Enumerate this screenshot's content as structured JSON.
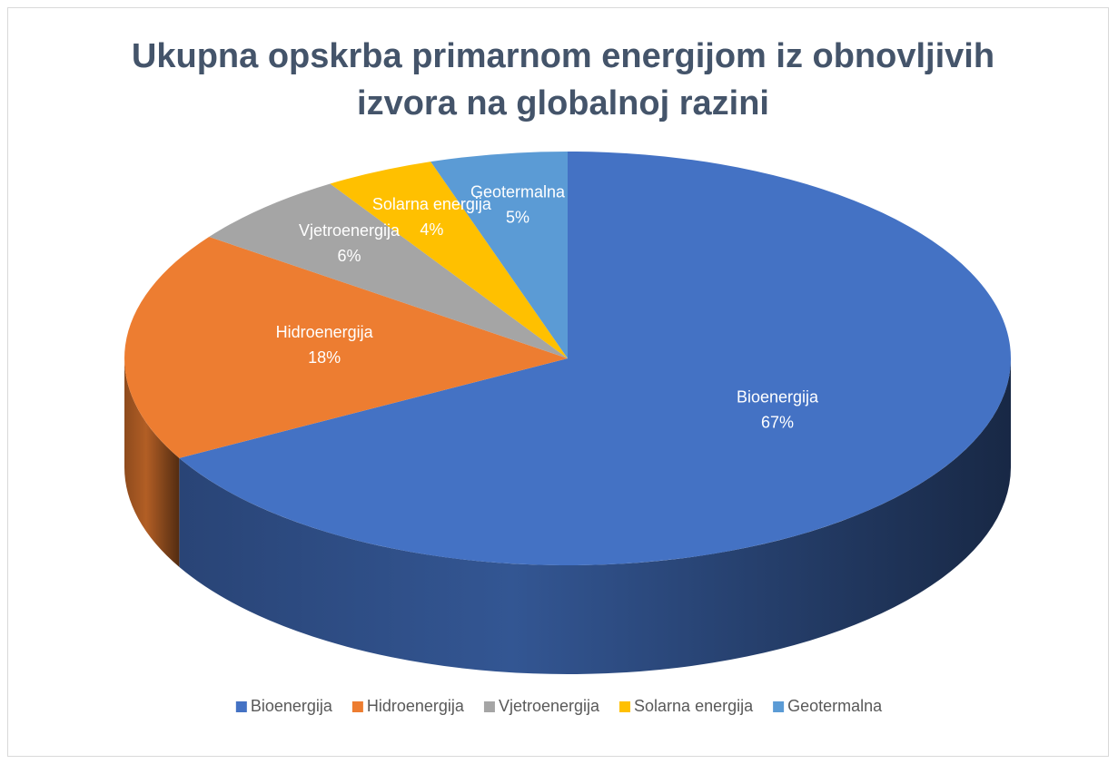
{
  "chart_data": {
    "type": "pie",
    "title": "Ukupna opskrba primarnom energijom iz obnovljivih izvora na globalnoj razini",
    "categories": [
      "Bioenergija",
      "Hidroenergija",
      "Vjetroenergija",
      "Solarna energija",
      "Geotermalna"
    ],
    "values": [
      67,
      18,
      6,
      4,
      5
    ],
    "value_labels": [
      "67%",
      "18%",
      "6%",
      "4%",
      "5%"
    ],
    "colors": [
      "#4472c4",
      "#ed7d31",
      "#a5a5a5",
      "#ffc000",
      "#5b9bd5"
    ],
    "legend": "bottom"
  }
}
